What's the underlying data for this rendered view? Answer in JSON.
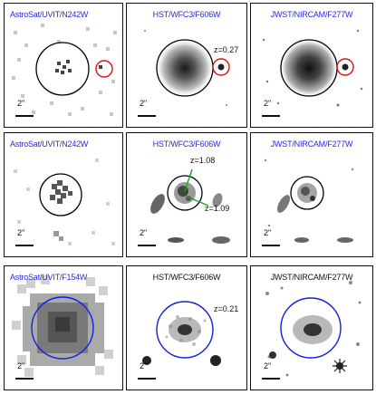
{
  "colors": {
    "label": "#2a2ad8",
    "red_marker": "#e01010",
    "green_pointer": "#1aa31a",
    "blue_marker": "#1020e0"
  },
  "rows": [
    {
      "panels": [
        {
          "label": "AstroSat/UVIT/N242W",
          "scale": "2\""
        },
        {
          "label": "HST/WFC3/F606W",
          "scale": "2\"",
          "z": "z=0.27"
        },
        {
          "label": "JWST/NIRCAM/F277W",
          "scale": "2\""
        }
      ]
    },
    {
      "panels": [
        {
          "label": "AstroSat/UVIT/N242W",
          "scale": "2\""
        },
        {
          "label": "HST/WFC3/F606W",
          "scale": "2\"",
          "z1": "z=1.08",
          "z2": "z=1.09"
        },
        {
          "label": "JWST/NIRCAM/F277W",
          "scale": "2\""
        }
      ]
    },
    {
      "panels": [
        {
          "label": "AstroSat/UVIT/F154W",
          "scale": "2\""
        },
        {
          "label": "HST/WFC3/F606W",
          "scale": "2\"",
          "z": "z=0.21"
        },
        {
          "label": "JWST/NIRCAM/F277W",
          "scale": "2\""
        }
      ]
    }
  ]
}
